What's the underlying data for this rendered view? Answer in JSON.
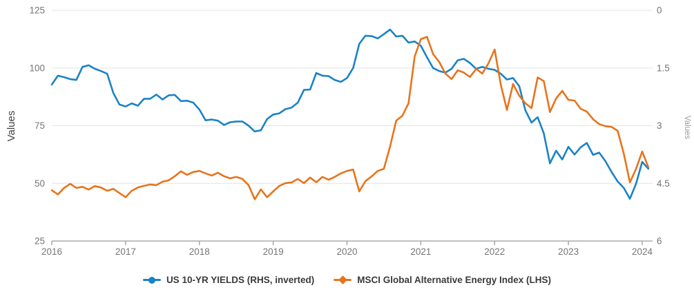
{
  "chart": {
    "left_axis": {
      "title": "Values",
      "tick_labels": [
        "125",
        "100",
        "75",
        "50",
        "25"
      ],
      "tick_values": [
        125,
        100,
        75,
        50,
        25
      ]
    },
    "right_axis": {
      "title": "Values",
      "tick_labels": [
        "0",
        "1.5",
        "3",
        "4.5",
        "6"
      ],
      "tick_values": [
        0,
        1.5,
        3,
        4.5,
        6
      ]
    },
    "x_axis": {
      "tick_labels": [
        "2016",
        "2017",
        "2018",
        "2019",
        "2020",
        "2021",
        "2022",
        "2023",
        "2024"
      ]
    }
  },
  "chart_data": {
    "type": "line",
    "x_unit": "month",
    "x_start": "2016-01",
    "x_tick_labels": [
      "2016",
      "2017",
      "2018",
      "2019",
      "2020",
      "2021",
      "2022",
      "2023",
      "2024"
    ],
    "left_ylim": [
      25,
      125
    ],
    "right_ylim": [
      0,
      6
    ],
    "right_axis_inverted": true,
    "grid": true,
    "legend_position": "bottom",
    "series": [
      {
        "name": "US 10-YR YIELDS (RHS, inverted)",
        "axis": "right",
        "color": "#1a82c6",
        "marker": "circle",
        "values": [
          1.93,
          1.7,
          1.74,
          1.79,
          1.81,
          1.47,
          1.43,
          1.52,
          1.58,
          1.65,
          2.15,
          2.45,
          2.5,
          2.42,
          2.48,
          2.3,
          2.3,
          2.19,
          2.32,
          2.21,
          2.2,
          2.36,
          2.35,
          2.4,
          2.58,
          2.86,
          2.84,
          2.87,
          2.98,
          2.91,
          2.89,
          2.89,
          3.0,
          3.15,
          3.12,
          2.83,
          2.71,
          2.68,
          2.57,
          2.53,
          2.4,
          2.07,
          2.06,
          1.63,
          1.7,
          1.71,
          1.81,
          1.86,
          1.76,
          1.5,
          0.87,
          0.66,
          0.67,
          0.73,
          0.62,
          0.5,
          0.68,
          0.66,
          0.84,
          0.81,
          0.92,
          1.22,
          1.5,
          1.58,
          1.62,
          1.52,
          1.3,
          1.26,
          1.37,
          1.52,
          1.47,
          1.52,
          1.55,
          1.65,
          1.8,
          1.76,
          1.97,
          2.6,
          2.92,
          2.78,
          3.2,
          3.98,
          3.65,
          3.88,
          3.55,
          3.75,
          3.56,
          3.45,
          3.76,
          3.7,
          3.92,
          4.2,
          4.45,
          4.62,
          4.9,
          4.51,
          3.94,
          4.12
        ]
      },
      {
        "name": "MSCI Global Alternative Energy Index (LHS)",
        "axis": "left",
        "color": "#e8731a",
        "marker": "diamond",
        "values": [
          47.0,
          45.2,
          48.0,
          49.8,
          48.0,
          48.5,
          47.3,
          48.8,
          48.2,
          46.8,
          47.6,
          45.8,
          44.0,
          46.8,
          48.2,
          48.9,
          49.5,
          49.2,
          50.7,
          51.3,
          53.1,
          55.2,
          53.7,
          54.9,
          55.4,
          54.3,
          53.4,
          54.6,
          53.1,
          52.2,
          52.8,
          51.9,
          49.2,
          43.1,
          47.4,
          44.0,
          46.5,
          48.9,
          50.1,
          50.4,
          51.9,
          50.1,
          52.5,
          50.5,
          52.8,
          51.6,
          52.8,
          54.3,
          55.4,
          56.0,
          46.5,
          51.0,
          53.0,
          55.4,
          56.3,
          65.9,
          77.2,
          79.3,
          84.7,
          105.0,
          112.5,
          113.5,
          106.0,
          102.6,
          97.6,
          95.2,
          99.0,
          98.0,
          96.1,
          99.6,
          97.6,
          102.0,
          108.0,
          92.8,
          81.8,
          93.1,
          88.0,
          84.7,
          82.6,
          95.9,
          94.3,
          80.9,
          86.8,
          90.1,
          86.2,
          85.9,
          82.3,
          81.1,
          77.8,
          75.7,
          74.8,
          74.5,
          72.8,
          62.9,
          50.4,
          56.3,
          63.8,
          57.0
        ]
      }
    ]
  },
  "legend": {
    "items": [
      {
        "label": "US 10-YR YIELDS (RHS, inverted)",
        "color": "#1a82c6",
        "marker": "circle-marker-icon"
      },
      {
        "label": "MSCI Global Alternative Energy Index (LHS)",
        "color": "#e8731a",
        "marker": "diamond-marker-icon"
      }
    ]
  },
  "colors": {
    "background": "#ffffff",
    "gridline": "#e3e3e3",
    "axis_line": "#9b9b9b",
    "tick_label": "#757575",
    "blue_series": "#1a82c6",
    "orange_series": "#e8731a",
    "legend_text": "#3a3a3a"
  }
}
